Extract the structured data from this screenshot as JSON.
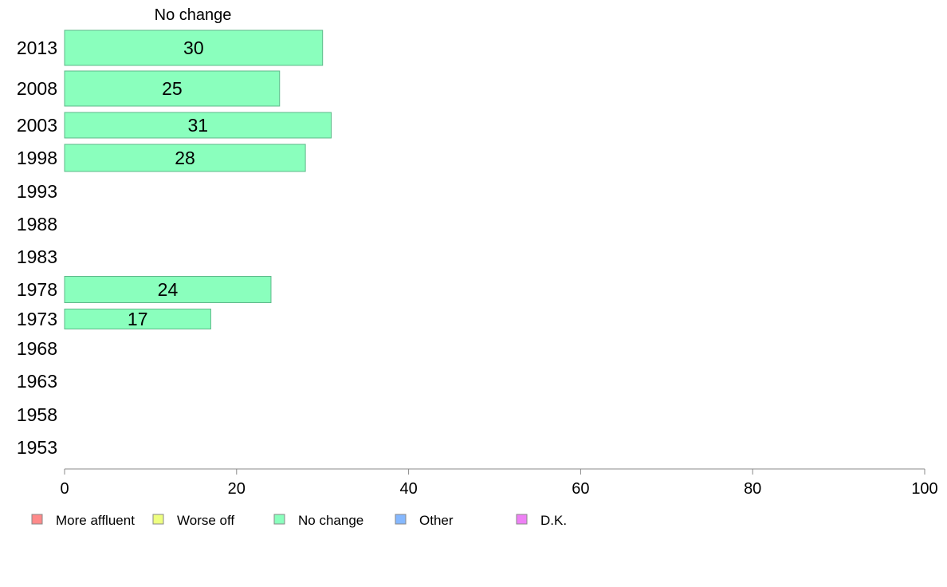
{
  "chart_data": {
    "type": "bar",
    "orientation": "horizontal",
    "title": "No change",
    "categories": [
      "2013",
      "2008",
      "2003",
      "1998",
      "1993",
      "1988",
      "1983",
      "1978",
      "1973",
      "1968",
      "1963",
      "1958",
      "1953"
    ],
    "series": [
      {
        "name": "No change",
        "color": "#8affbd",
        "values": [
          30,
          25,
          31,
          28,
          null,
          null,
          null,
          24,
          17,
          null,
          null,
          null,
          null
        ]
      }
    ],
    "xlim": [
      0,
      100
    ],
    "xticks": [
      0,
      20,
      40,
      60,
      80,
      100
    ],
    "xlabel": "",
    "ylabel": "",
    "grid": false,
    "legend": {
      "placement": "bottom",
      "entries": [
        {
          "label": "More affluent",
          "color": "#ff8a8a"
        },
        {
          "label": "Worse off",
          "color": "#eeff80"
        },
        {
          "label": "No change",
          "color": "#8affbd"
        },
        {
          "label": "Other",
          "color": "#85b8ff"
        },
        {
          "label": "D.K.",
          "color": "#ee80f5"
        }
      ]
    }
  }
}
